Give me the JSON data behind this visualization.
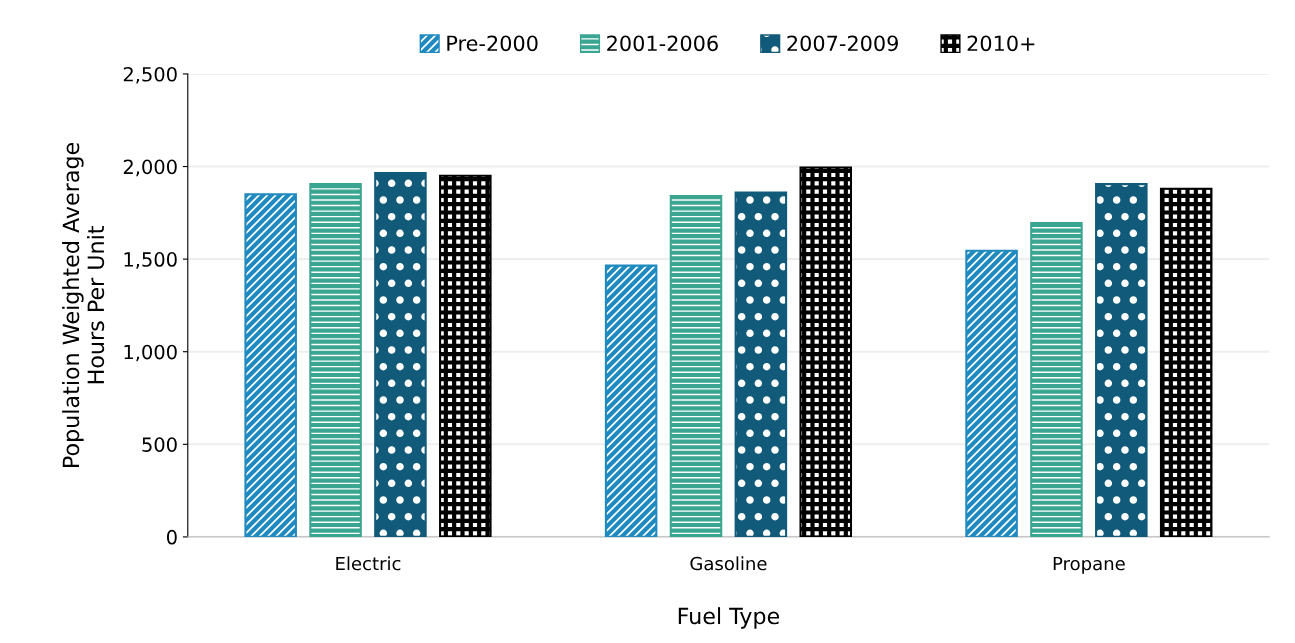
{
  "chart_data": {
    "type": "bar",
    "xlabel": "Fuel Type",
    "ylabel": "Population Weighted Average\nHours Per Unit",
    "categories": [
      "Electric",
      "Gasoline",
      "Propane"
    ],
    "series": [
      {
        "name": "Pre-2000",
        "color": "#1f8ac0",
        "values": [
          1850,
          1465,
          1545
        ]
      },
      {
        "name": "2001-2006",
        "color": "#3aa692",
        "values": [
          1905,
          1840,
          1695
        ]
      },
      {
        "name": "2007-2009",
        "color": "#115a7a",
        "values": [
          1965,
          1860,
          1905
        ]
      },
      {
        "name": "2010+",
        "color": "#000000",
        "values": [
          1950,
          1995,
          1880
        ]
      }
    ],
    "ylim": [
      0,
      2500
    ],
    "yticks": [
      {
        "value": 0,
        "label": "0"
      },
      {
        "value": 500,
        "label": "500"
      },
      {
        "value": 1000,
        "label": "1,000"
      },
      {
        "value": 1500,
        "label": "1,500"
      },
      {
        "value": 2000,
        "label": "2,000"
      },
      {
        "value": 2500,
        "label": "2,500"
      }
    ],
    "grid": "y",
    "legend": "top"
  }
}
